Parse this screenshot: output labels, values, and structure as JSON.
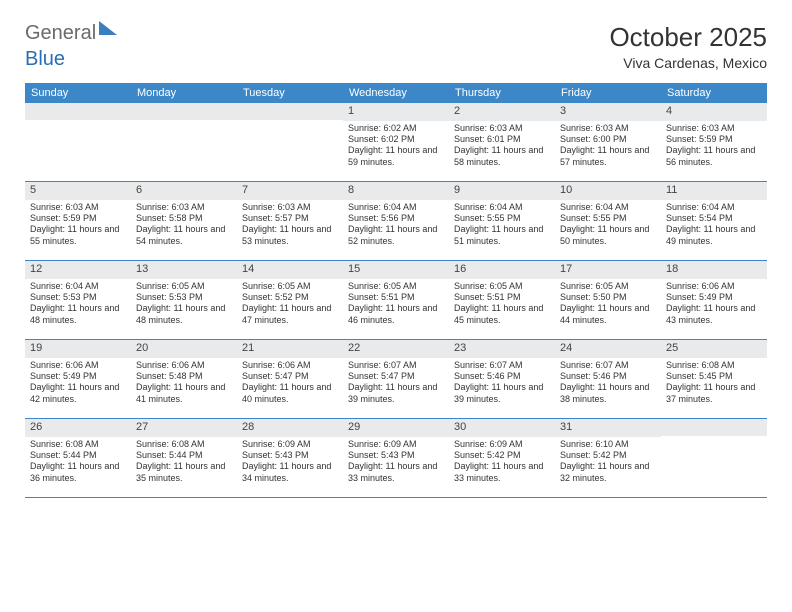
{
  "logo": {
    "text1": "General",
    "text2": "Blue"
  },
  "title": "October 2025",
  "location": "Viva Cardenas, Mexico",
  "weekdays": [
    "Sunday",
    "Monday",
    "Tuesday",
    "Wednesday",
    "Thursday",
    "Friday",
    "Saturday"
  ],
  "colors": {
    "header_bg": "#3b87c8",
    "daynum_bg": "#e9eaec",
    "border": "#3b87c8"
  },
  "cells": [
    {
      "day": "",
      "sunrise": "",
      "sunset": "",
      "daylight": ""
    },
    {
      "day": "",
      "sunrise": "",
      "sunset": "",
      "daylight": ""
    },
    {
      "day": "",
      "sunrise": "",
      "sunset": "",
      "daylight": ""
    },
    {
      "day": "1",
      "sunrise": "Sunrise: 6:02 AM",
      "sunset": "Sunset: 6:02 PM",
      "daylight": "Daylight: 11 hours and 59 minutes."
    },
    {
      "day": "2",
      "sunrise": "Sunrise: 6:03 AM",
      "sunset": "Sunset: 6:01 PM",
      "daylight": "Daylight: 11 hours and 58 minutes."
    },
    {
      "day": "3",
      "sunrise": "Sunrise: 6:03 AM",
      "sunset": "Sunset: 6:00 PM",
      "daylight": "Daylight: 11 hours and 57 minutes."
    },
    {
      "day": "4",
      "sunrise": "Sunrise: 6:03 AM",
      "sunset": "Sunset: 5:59 PM",
      "daylight": "Daylight: 11 hours and 56 minutes."
    },
    {
      "day": "5",
      "sunrise": "Sunrise: 6:03 AM",
      "sunset": "Sunset: 5:59 PM",
      "daylight": "Daylight: 11 hours and 55 minutes."
    },
    {
      "day": "6",
      "sunrise": "Sunrise: 6:03 AM",
      "sunset": "Sunset: 5:58 PM",
      "daylight": "Daylight: 11 hours and 54 minutes."
    },
    {
      "day": "7",
      "sunrise": "Sunrise: 6:03 AM",
      "sunset": "Sunset: 5:57 PM",
      "daylight": "Daylight: 11 hours and 53 minutes."
    },
    {
      "day": "8",
      "sunrise": "Sunrise: 6:04 AM",
      "sunset": "Sunset: 5:56 PM",
      "daylight": "Daylight: 11 hours and 52 minutes."
    },
    {
      "day": "9",
      "sunrise": "Sunrise: 6:04 AM",
      "sunset": "Sunset: 5:55 PM",
      "daylight": "Daylight: 11 hours and 51 minutes."
    },
    {
      "day": "10",
      "sunrise": "Sunrise: 6:04 AM",
      "sunset": "Sunset: 5:55 PM",
      "daylight": "Daylight: 11 hours and 50 minutes."
    },
    {
      "day": "11",
      "sunrise": "Sunrise: 6:04 AM",
      "sunset": "Sunset: 5:54 PM",
      "daylight": "Daylight: 11 hours and 49 minutes."
    },
    {
      "day": "12",
      "sunrise": "Sunrise: 6:04 AM",
      "sunset": "Sunset: 5:53 PM",
      "daylight": "Daylight: 11 hours and 48 minutes."
    },
    {
      "day": "13",
      "sunrise": "Sunrise: 6:05 AM",
      "sunset": "Sunset: 5:53 PM",
      "daylight": "Daylight: 11 hours and 48 minutes."
    },
    {
      "day": "14",
      "sunrise": "Sunrise: 6:05 AM",
      "sunset": "Sunset: 5:52 PM",
      "daylight": "Daylight: 11 hours and 47 minutes."
    },
    {
      "day": "15",
      "sunrise": "Sunrise: 6:05 AM",
      "sunset": "Sunset: 5:51 PM",
      "daylight": "Daylight: 11 hours and 46 minutes."
    },
    {
      "day": "16",
      "sunrise": "Sunrise: 6:05 AM",
      "sunset": "Sunset: 5:51 PM",
      "daylight": "Daylight: 11 hours and 45 minutes."
    },
    {
      "day": "17",
      "sunrise": "Sunrise: 6:05 AM",
      "sunset": "Sunset: 5:50 PM",
      "daylight": "Daylight: 11 hours and 44 minutes."
    },
    {
      "day": "18",
      "sunrise": "Sunrise: 6:06 AM",
      "sunset": "Sunset: 5:49 PM",
      "daylight": "Daylight: 11 hours and 43 minutes."
    },
    {
      "day": "19",
      "sunrise": "Sunrise: 6:06 AM",
      "sunset": "Sunset: 5:49 PM",
      "daylight": "Daylight: 11 hours and 42 minutes."
    },
    {
      "day": "20",
      "sunrise": "Sunrise: 6:06 AM",
      "sunset": "Sunset: 5:48 PM",
      "daylight": "Daylight: 11 hours and 41 minutes."
    },
    {
      "day": "21",
      "sunrise": "Sunrise: 6:06 AM",
      "sunset": "Sunset: 5:47 PM",
      "daylight": "Daylight: 11 hours and 40 minutes."
    },
    {
      "day": "22",
      "sunrise": "Sunrise: 6:07 AM",
      "sunset": "Sunset: 5:47 PM",
      "daylight": "Daylight: 11 hours and 39 minutes."
    },
    {
      "day": "23",
      "sunrise": "Sunrise: 6:07 AM",
      "sunset": "Sunset: 5:46 PM",
      "daylight": "Daylight: 11 hours and 39 minutes."
    },
    {
      "day": "24",
      "sunrise": "Sunrise: 6:07 AM",
      "sunset": "Sunset: 5:46 PM",
      "daylight": "Daylight: 11 hours and 38 minutes."
    },
    {
      "day": "25",
      "sunrise": "Sunrise: 6:08 AM",
      "sunset": "Sunset: 5:45 PM",
      "daylight": "Daylight: 11 hours and 37 minutes."
    },
    {
      "day": "26",
      "sunrise": "Sunrise: 6:08 AM",
      "sunset": "Sunset: 5:44 PM",
      "daylight": "Daylight: 11 hours and 36 minutes."
    },
    {
      "day": "27",
      "sunrise": "Sunrise: 6:08 AM",
      "sunset": "Sunset: 5:44 PM",
      "daylight": "Daylight: 11 hours and 35 minutes."
    },
    {
      "day": "28",
      "sunrise": "Sunrise: 6:09 AM",
      "sunset": "Sunset: 5:43 PM",
      "daylight": "Daylight: 11 hours and 34 minutes."
    },
    {
      "day": "29",
      "sunrise": "Sunrise: 6:09 AM",
      "sunset": "Sunset: 5:43 PM",
      "daylight": "Daylight: 11 hours and 33 minutes."
    },
    {
      "day": "30",
      "sunrise": "Sunrise: 6:09 AM",
      "sunset": "Sunset: 5:42 PM",
      "daylight": "Daylight: 11 hours and 33 minutes."
    },
    {
      "day": "31",
      "sunrise": "Sunrise: 6:10 AM",
      "sunset": "Sunset: 5:42 PM",
      "daylight": "Daylight: 11 hours and 32 minutes."
    },
    {
      "day": "",
      "sunrise": "",
      "sunset": "",
      "daylight": ""
    }
  ]
}
